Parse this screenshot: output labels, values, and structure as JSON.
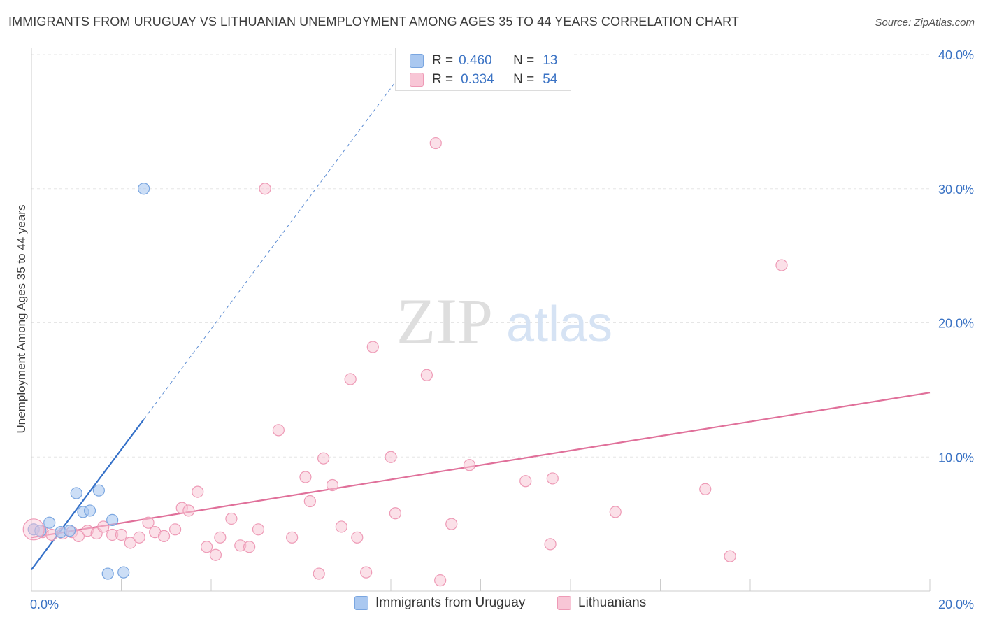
{
  "header": {
    "title": "IMMIGRANTS FROM URUGUAY VS LITHUANIAN UNEMPLOYMENT AMONG AGES 35 TO 44 YEARS CORRELATION CHART",
    "source": "Source: ZipAtlas.com"
  },
  "watermark": {
    "zip": "ZIP",
    "atlas": "atlas"
  },
  "stats": [
    {
      "r_label": "R =",
      "r_value": "0.460",
      "n_label": "N =",
      "n_value": "13",
      "color": "#aac8f0",
      "border": "#7aa6e0"
    },
    {
      "r_label": "R =",
      "r_value": "0.334",
      "n_label": "N =",
      "n_value": "54",
      "color": "#f8c6d6",
      "border": "#ee9ab6"
    }
  ],
  "legend": {
    "uruguay": "Immigrants from Uruguay",
    "lithuanians": "Lithuanians"
  },
  "colors": {
    "uruguay_fill": "#aac8f0",
    "uruguay_stroke": "#7aa6e0",
    "uruguay_line": "#3470c8",
    "lith_fill": "#f8c6d6",
    "lith_stroke": "#ee9ab6",
    "lith_line": "#e0709a",
    "tick_label": "#3b73c4",
    "grid": "#e6e6e6"
  },
  "chart_data": {
    "type": "scatter",
    "title": "IMMIGRANTS FROM URUGUAY VS LITHUANIAN UNEMPLOYMENT AMONG AGES 35 TO 44 YEARS CORRELATION CHART",
    "xlabel": "",
    "ylabel": "Unemployment Among Ages 35 to 44 years",
    "xlim": [
      0,
      20
    ],
    "ylim": [
      0,
      40
    ],
    "x_tick_labels": [
      {
        "value": 0,
        "label": "0.0%"
      },
      {
        "value": 20,
        "label": "20.0%"
      }
    ],
    "y_tick_labels": [
      {
        "value": 10,
        "label": "10.0%"
      },
      {
        "value": 20,
        "label": "20.0%"
      },
      {
        "value": 30,
        "label": "30.0%"
      },
      {
        "value": 40,
        "label": "40.0%"
      }
    ],
    "series": [
      {
        "name": "Immigrants from Uruguay",
        "points": [
          [
            0.05,
            4.6
          ],
          [
            0.2,
            4.5
          ],
          [
            0.4,
            5.1
          ],
          [
            0.65,
            4.4
          ],
          [
            0.85,
            4.5
          ],
          [
            1.0,
            7.3
          ],
          [
            1.15,
            5.9
          ],
          [
            1.3,
            6.0
          ],
          [
            1.5,
            7.5
          ],
          [
            1.7,
            1.3
          ],
          [
            1.8,
            5.3
          ],
          [
            2.05,
            1.4
          ],
          [
            2.5,
            30.0
          ]
        ],
        "trend": {
          "x0": 0,
          "y0": 1.6,
          "x1": 2.5,
          "y1": 12.8,
          "dash_to_x": 8.6,
          "dash_to_y": 40.2
        }
      },
      {
        "name": "Lithuanians",
        "points": [
          [
            0.05,
            4.6
          ],
          [
            0.25,
            4.4
          ],
          [
            0.45,
            4.2
          ],
          [
            0.7,
            4.3
          ],
          [
            0.9,
            4.4
          ],
          [
            1.05,
            4.1
          ],
          [
            1.25,
            4.5
          ],
          [
            1.45,
            4.3
          ],
          [
            1.6,
            4.8
          ],
          [
            1.8,
            4.2
          ],
          [
            2.0,
            4.2
          ],
          [
            2.2,
            3.6
          ],
          [
            2.4,
            4.0
          ],
          [
            2.6,
            5.1
          ],
          [
            2.75,
            4.4
          ],
          [
            2.95,
            4.1
          ],
          [
            3.2,
            4.6
          ],
          [
            3.35,
            6.2
          ],
          [
            3.5,
            6.0
          ],
          [
            3.7,
            7.4
          ],
          [
            3.9,
            3.3
          ],
          [
            4.1,
            2.7
          ],
          [
            4.2,
            4.0
          ],
          [
            4.45,
            5.4
          ],
          [
            4.65,
            3.4
          ],
          [
            4.85,
            3.3
          ],
          [
            5.05,
            4.6
          ],
          [
            5.2,
            30.0
          ],
          [
            5.5,
            12.0
          ],
          [
            5.8,
            4.0
          ],
          [
            6.1,
            8.5
          ],
          [
            6.2,
            6.7
          ],
          [
            6.4,
            1.3
          ],
          [
            6.5,
            9.9
          ],
          [
            6.7,
            7.9
          ],
          [
            6.9,
            4.8
          ],
          [
            7.1,
            15.8
          ],
          [
            7.25,
            4.0
          ],
          [
            7.45,
            1.4
          ],
          [
            7.6,
            18.2
          ],
          [
            8.0,
            10.0
          ],
          [
            8.1,
            5.8
          ],
          [
            8.8,
            16.1
          ],
          [
            9.0,
            33.4
          ],
          [
            9.1,
            0.8
          ],
          [
            9.35,
            5.0
          ],
          [
            9.75,
            9.4
          ],
          [
            11.0,
            8.2
          ],
          [
            11.55,
            3.5
          ],
          [
            11.6,
            8.4
          ],
          [
            13.0,
            5.9
          ],
          [
            15.0,
            7.6
          ],
          [
            15.55,
            2.6
          ],
          [
            16.7,
            24.3
          ]
        ],
        "trend": {
          "x0": 0,
          "y0": 4.0,
          "x1": 20,
          "y1": 14.8
        }
      }
    ],
    "grid": true,
    "legend_position": "bottom-center"
  }
}
